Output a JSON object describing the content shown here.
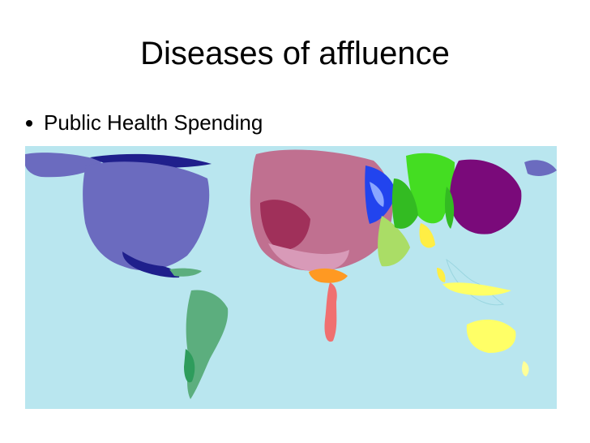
{
  "slide": {
    "title": "Diseases of affluence",
    "bullets": [
      "Public Health Spending"
    ]
  },
  "map": {
    "type": "cartogram",
    "ocean_color": "#b9e6ef",
    "regions": [
      {
        "id": "north-america",
        "color": "#6b6bbf"
      },
      {
        "id": "central-america",
        "color": "#1f1f8c"
      },
      {
        "id": "south-america",
        "color": "#5cae7e"
      },
      {
        "id": "western-europe",
        "color": "#c07090"
      },
      {
        "id": "eastern-europe",
        "color": "#2244ee"
      },
      {
        "id": "russia-central-asia",
        "color": "#44dd22"
      },
      {
        "id": "east-asia",
        "color": "#7a0a7a"
      },
      {
        "id": "middle-east",
        "color": "#aadd66"
      },
      {
        "id": "north-africa",
        "color": "#ff9922"
      },
      {
        "id": "southern-africa",
        "color": "#f07070"
      },
      {
        "id": "south-asia",
        "color": "#ffee44"
      },
      {
        "id": "oceania",
        "color": "#ffff66"
      }
    ]
  }
}
